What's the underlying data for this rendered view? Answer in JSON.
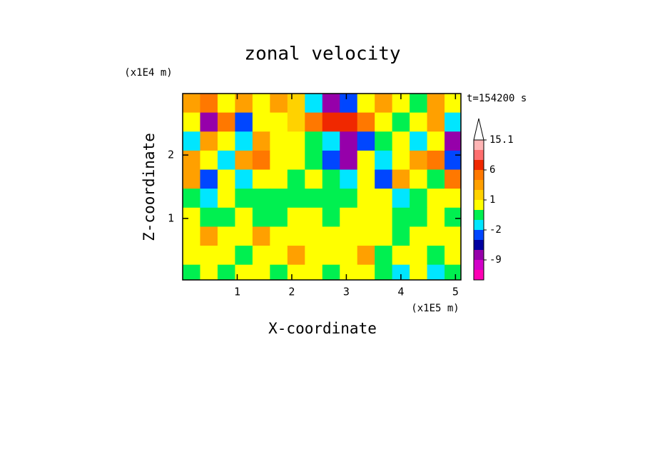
{
  "chart_data": {
    "type": "contour",
    "title": "zonal velocity",
    "xlabel": "X-coordinate",
    "ylabel": "Z-coordinate",
    "x_unit": "(x1E5 m)",
    "y_unit": "(x1E4 m)",
    "time_label": "t=154200 s",
    "xlim": [
      0,
      5.1
    ],
    "ylim": [
      0.03,
      2.97
    ],
    "xticks": [
      1,
      2,
      3,
      4,
      5
    ],
    "yticks": [
      1,
      2
    ],
    "x": [
      0.16,
      0.48,
      0.8,
      1.12,
      1.44,
      1.76,
      2.08,
      2.4,
      2.72,
      3.04,
      3.36,
      3.68,
      4.0,
      4.32,
      4.64,
      4.96
    ],
    "z": [
      2.82,
      2.52,
      2.22,
      1.92,
      1.62,
      1.32,
      1.02,
      0.72,
      0.42,
      0.12
    ],
    "values": [
      [
        3,
        4,
        0.5,
        3,
        0.5,
        3,
        1.5,
        -2,
        -7,
        -3,
        0.5,
        3,
        0.5,
        -0.5,
        3,
        0.5
      ],
      [
        0.5,
        -7,
        4,
        -3,
        0.5,
        0.5,
        1.5,
        4,
        8,
        8,
        4,
        0.5,
        -0.5,
        0.5,
        3,
        -1.5
      ],
      [
        -1.5,
        3,
        0.5,
        -1.5,
        3,
        0.5,
        0.5,
        -0.5,
        -1.5,
        -7,
        -3,
        -0.5,
        0.5,
        -1.5,
        0.5,
        -7
      ],
      [
        3,
        0.5,
        -1.5,
        3,
        4,
        0.5,
        0.5,
        -0.5,
        -3,
        -7,
        0.5,
        -1.5,
        0.5,
        3,
        4,
        -3
      ],
      [
        3,
        -3,
        0.5,
        -1.5,
        0.5,
        0.5,
        -0.5,
        0.5,
        -0.5,
        -1.5,
        0.5,
        -3,
        3,
        0.5,
        -0.5,
        4
      ],
      [
        -0.5,
        -1.5,
        0.5,
        -0.5,
        -0.5,
        -0.5,
        -0.5,
        -0.5,
        -0.5,
        -0.5,
        0.5,
        0.5,
        -1.5,
        -0.5,
        0.5,
        0.5
      ],
      [
        0.5,
        -0.5,
        -0.5,
        0.5,
        -0.5,
        -0.5,
        0.5,
        0.5,
        -0.5,
        0.5,
        0.5,
        0.5,
        -0.5,
        -0.5,
        0.5,
        -0.5
      ],
      [
        0.5,
        3,
        0.5,
        0.5,
        3,
        0.5,
        0.5,
        0.5,
        0.5,
        0.5,
        0.5,
        0.5,
        -0.5,
        0.5,
        0.5,
        0.5
      ],
      [
        0.5,
        0.5,
        0.5,
        -0.5,
        0.5,
        0.5,
        3,
        0.5,
        0.5,
        0.5,
        3,
        -0.5,
        0.5,
        0.5,
        -0.5,
        0.5
      ],
      [
        -0.5,
        0.5,
        -0.5,
        0.5,
        0.5,
        -0.5,
        0.5,
        0.5,
        -0.5,
        0.5,
        0.5,
        -0.5,
        -1.5,
        0.5,
        -1.5,
        -0.5
      ]
    ],
    "levels": [
      -20,
      -12,
      -9,
      -6,
      -4,
      -2,
      -1,
      0,
      1,
      2,
      4,
      6,
      9,
      12,
      15.1
    ],
    "colors": [
      "#ff00b4",
      "#d200c8",
      "#9600aa",
      "#0000a0",
      "#0046ff",
      "#00e6ff",
      "#00f050",
      "#ffff00",
      "#ffd200",
      "#ffa000",
      "#ff7800",
      "#f02800",
      "#ff6e6e",
      "#ffb4b4"
    ],
    "cbticks": [
      15.1,
      6,
      1,
      -2,
      -9
    ]
  }
}
